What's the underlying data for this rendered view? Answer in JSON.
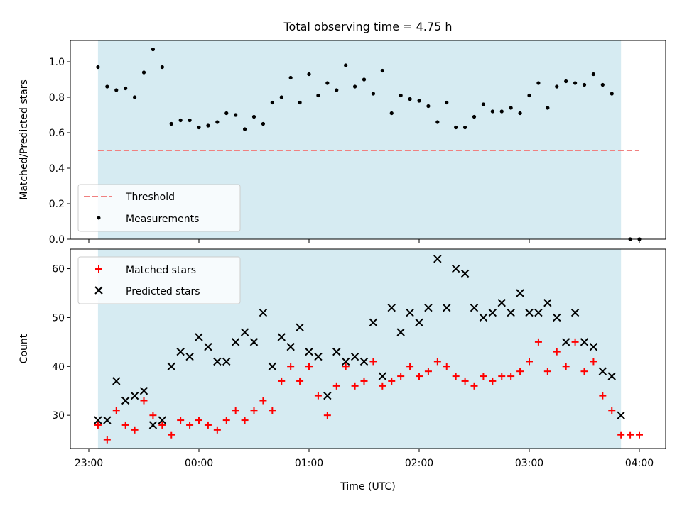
{
  "chart_data": [
    {
      "type": "scatter",
      "title": "Total observing time = 4.75 h",
      "xlabel": "",
      "ylabel": "Matched/Predicted stars",
      "ylim": [
        0,
        1.12
      ],
      "yticks": [
        0.0,
        0.2,
        0.4,
        0.6,
        0.8,
        1.0
      ],
      "ytick_labels": [
        "0.0",
        "0.2",
        "0.4",
        "0.6",
        "0.8",
        "1.0"
      ],
      "shaded_interval": [
        "23:05",
        "03:50"
      ],
      "threshold": {
        "name": "Threshold",
        "value": 0.5,
        "color": "#f08080",
        "style": "dashed",
        "x_range": [
          "23:05",
          "04:00"
        ]
      },
      "legend": {
        "position": "lower-left",
        "entries": [
          "Threshold",
          "Measurements"
        ]
      },
      "series": [
        {
          "name": "Measurements",
          "marker": "dot",
          "color": "#000000",
          "x": [
            "23:05",
            "23:10",
            "23:15",
            "23:20",
            "23:25",
            "23:30",
            "23:35",
            "23:40",
            "23:45",
            "23:50",
            "23:55",
            "00:00",
            "00:05",
            "00:10",
            "00:15",
            "00:20",
            "00:25",
            "00:30",
            "00:35",
            "00:40",
            "00:45",
            "00:50",
            "00:55",
            "01:00",
            "01:05",
            "01:10",
            "01:15",
            "01:20",
            "01:25",
            "01:30",
            "01:35",
            "01:40",
            "01:45",
            "01:50",
            "01:55",
            "02:00",
            "02:05",
            "02:10",
            "02:15",
            "02:20",
            "02:25",
            "02:30",
            "02:35",
            "02:40",
            "02:45",
            "02:50",
            "02:55",
            "03:00",
            "03:05",
            "03:10",
            "03:15",
            "03:20",
            "03:25",
            "03:30",
            "03:35",
            "03:40",
            "03:45",
            "03:55",
            "04:00"
          ],
          "y": [
            0.97,
            0.86,
            0.84,
            0.85,
            0.8,
            0.94,
            1.07,
            0.97,
            0.65,
            0.67,
            0.67,
            0.63,
            0.64,
            0.66,
            0.71,
            0.7,
            0.62,
            0.69,
            0.65,
            0.77,
            0.8,
            0.91,
            0.77,
            0.93,
            0.81,
            0.88,
            0.84,
            0.98,
            0.86,
            0.9,
            0.82,
            0.95,
            0.71,
            0.81,
            0.79,
            0.78,
            0.75,
            0.66,
            0.77,
            0.63,
            0.63,
            0.69,
            0.76,
            0.72,
            0.72,
            0.74,
            0.71,
            0.81,
            0.88,
            0.74,
            0.86,
            0.89,
            0.88,
            0.87,
            0.93,
            0.87,
            0.82,
            0.0,
            0.0
          ]
        }
      ]
    },
    {
      "type": "scatter",
      "title": "",
      "xlabel": "Time (UTC)",
      "ylabel": "Count",
      "ylim": [
        23.2,
        64.0
      ],
      "yticks": [
        30,
        40,
        50,
        60
      ],
      "ytick_labels": [
        "30",
        "40",
        "50",
        "60"
      ],
      "xticks": [
        "23:00",
        "00:00",
        "01:00",
        "02:00",
        "03:00",
        "04:00"
      ],
      "xtick_labels": [
        "23:00",
        "00:00",
        "01:00",
        "02:00",
        "03:00",
        "04:00"
      ],
      "shaded_interval": [
        "23:05",
        "03:50"
      ],
      "legend": {
        "position": "top-left",
        "entries": [
          "Matched stars",
          "Predicted stars"
        ]
      },
      "series": [
        {
          "name": "Matched stars",
          "marker": "plus",
          "color": "#ff0000",
          "x": [
            "23:05",
            "23:10",
            "23:15",
            "23:20",
            "23:25",
            "23:30",
            "23:35",
            "23:40",
            "23:45",
            "23:50",
            "23:55",
            "00:00",
            "00:05",
            "00:10",
            "00:15",
            "00:20",
            "00:25",
            "00:30",
            "00:35",
            "00:40",
            "00:45",
            "00:50",
            "00:55",
            "01:00",
            "01:05",
            "01:10",
            "01:15",
            "01:20",
            "01:25",
            "01:30",
            "01:35",
            "01:40",
            "01:45",
            "01:50",
            "01:55",
            "02:00",
            "02:05",
            "02:10",
            "02:15",
            "02:20",
            "02:25",
            "02:30",
            "02:35",
            "02:40",
            "02:45",
            "02:50",
            "02:55",
            "03:00",
            "03:05",
            "03:10",
            "03:15",
            "03:20",
            "03:25",
            "03:30",
            "03:35",
            "03:40",
            "03:45",
            "03:50",
            "03:55",
            "04:00"
          ],
          "y": [
            28,
            25,
            31,
            28,
            27,
            33,
            30,
            28,
            26,
            29,
            28,
            29,
            28,
            27,
            29,
            31,
            29,
            31,
            33,
            31,
            37,
            40,
            37,
            40,
            34,
            30,
            36,
            40,
            36,
            37,
            41,
            36,
            37,
            38,
            40,
            38,
            39,
            41,
            40,
            38,
            37,
            36,
            38,
            37,
            38,
            38,
            39,
            41,
            45,
            39,
            43,
            40,
            45,
            39,
            41,
            34,
            31,
            26,
            26,
            26
          ]
        },
        {
          "name": "Predicted stars",
          "marker": "x",
          "color": "#000000",
          "x": [
            "23:05",
            "23:10",
            "23:15",
            "23:20",
            "23:25",
            "23:30",
            "23:35",
            "23:40",
            "23:45",
            "23:50",
            "23:55",
            "00:00",
            "00:05",
            "00:10",
            "00:15",
            "00:20",
            "00:25",
            "00:30",
            "00:35",
            "00:40",
            "00:45",
            "00:50",
            "00:55",
            "01:00",
            "01:05",
            "01:10",
            "01:15",
            "01:20",
            "01:25",
            "01:30",
            "01:35",
            "01:40",
            "01:45",
            "01:50",
            "01:55",
            "02:00",
            "02:05",
            "02:10",
            "02:15",
            "02:20",
            "02:25",
            "02:30",
            "02:35",
            "02:40",
            "02:45",
            "02:50",
            "02:55",
            "03:00",
            "03:05",
            "03:10",
            "03:15",
            "03:20",
            "03:25",
            "03:30",
            "03:35",
            "03:40",
            "03:45",
            "03:50"
          ],
          "y": [
            29,
            29,
            37,
            33,
            34,
            35,
            28,
            29,
            40,
            43,
            42,
            46,
            44,
            41,
            41,
            45,
            47,
            45,
            51,
            40,
            46,
            44,
            48,
            43,
            42,
            34,
            43,
            41,
            42,
            41,
            49,
            38,
            52,
            47,
            51,
            49,
            52,
            62,
            52,
            60,
            59,
            52,
            50,
            51,
            53,
            51,
            55,
            51,
            51,
            53,
            50,
            45,
            51,
            45,
            44,
            39,
            38,
            30
          ]
        }
      ]
    }
  ]
}
